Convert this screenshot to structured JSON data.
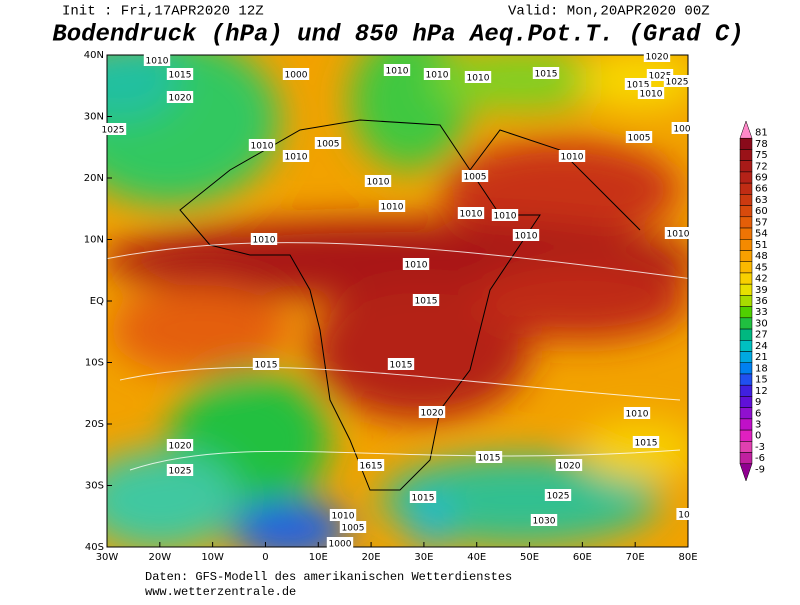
{
  "header": {
    "init": "Init : Fri,17APR2020 12Z",
    "valid": "Valid: Mon,20APR2020 00Z",
    "title": "Bodendruck (hPa) und 850 hPa Aeq.Pot.T. (Grad C)"
  },
  "map": {
    "lon_ticks": [
      "30W",
      "20W",
      "10W",
      "0",
      "10E",
      "20E",
      "30E",
      "40E",
      "50E",
      "60E",
      "70E",
      "80E"
    ],
    "lat_ticks": [
      "40N",
      "30N",
      "20N",
      "10N",
      "EQ",
      "10S",
      "20S",
      "30S",
      "40S"
    ],
    "isobar_labels": [
      1010,
      1015,
      1020,
      1000,
      1010,
      1010,
      1010,
      1015,
      1020,
      1025,
      1015,
      1010,
      1025,
      1025,
      1010,
      1010,
      1005,
      1005,
      1010,
      100,
      1010,
      1005,
      1010,
      1010,
      1010,
      1010,
      1010,
      1010,
      1010,
      1015,
      1015,
      1015,
      1020,
      1010,
      1020,
      1015,
      1025,
      1015,
      1020,
      1615,
      1015,
      1025,
      1010,
      1030,
      1005,
      1000,
      10
    ]
  },
  "colorbar": {
    "labels": [
      81,
      78,
      75,
      72,
      69,
      66,
      63,
      60,
      57,
      54,
      51,
      48,
      45,
      42,
      39,
      36,
      33,
      30,
      27,
      24,
      21,
      18,
      15,
      12,
      9,
      6,
      3,
      0,
      -3,
      -6,
      -9
    ],
    "colors": [
      "#ff88c8",
      "#8a0a1a",
      "#9a1218",
      "#a81a18",
      "#b42218",
      "#c02c14",
      "#cc3a10",
      "#d84a0c",
      "#e45e08",
      "#ee7404",
      "#f48a00",
      "#f8a000",
      "#fbb800",
      "#f8d000",
      "#e8e000",
      "#a8dc00",
      "#50d000",
      "#20c040",
      "#00b880",
      "#00c0c0",
      "#00a8e0",
      "#0080f0",
      "#2050f0",
      "#4020e0",
      "#6010d8",
      "#9010d0",
      "#c010c8",
      "#e020c0",
      "#e040b0",
      "#c020a0",
      "#900090"
    ]
  },
  "footer": {
    "line1": "Daten: GFS-Modell des amerikanischen Wetterdienstes",
    "line2": "www.wetterzentrale.de"
  }
}
